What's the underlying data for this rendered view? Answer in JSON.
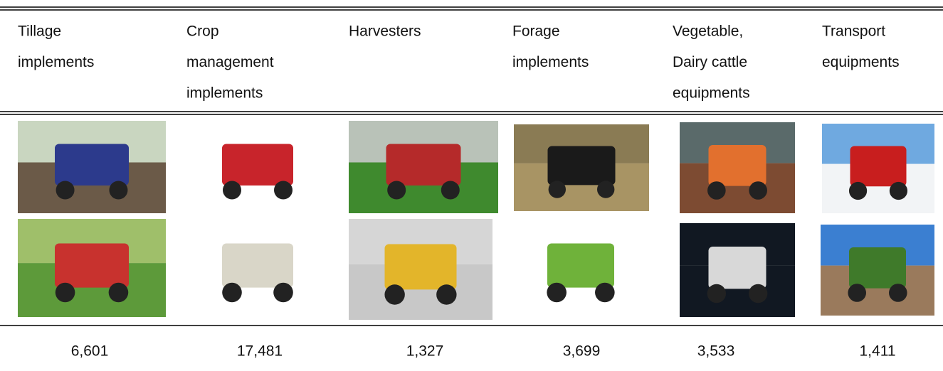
{
  "table": {
    "columns": [
      {
        "header": [
          "Tillage",
          "implements"
        ],
        "value": "6,601"
      },
      {
        "header": [
          "Crop",
          "management",
          "implements"
        ],
        "value": "17,481"
      },
      {
        "header": [
          "Harvesters"
        ],
        "value": "1,327"
      },
      {
        "header": [
          "Forage",
          "implements"
        ],
        "value": "3,699"
      },
      {
        "header": [
          "Vegetable,",
          "Dairy cattle",
          "equipments"
        ],
        "value": "3,533"
      },
      {
        "header": [
          "Transport",
          "equipments"
        ],
        "value": "1,411"
      }
    ]
  }
}
